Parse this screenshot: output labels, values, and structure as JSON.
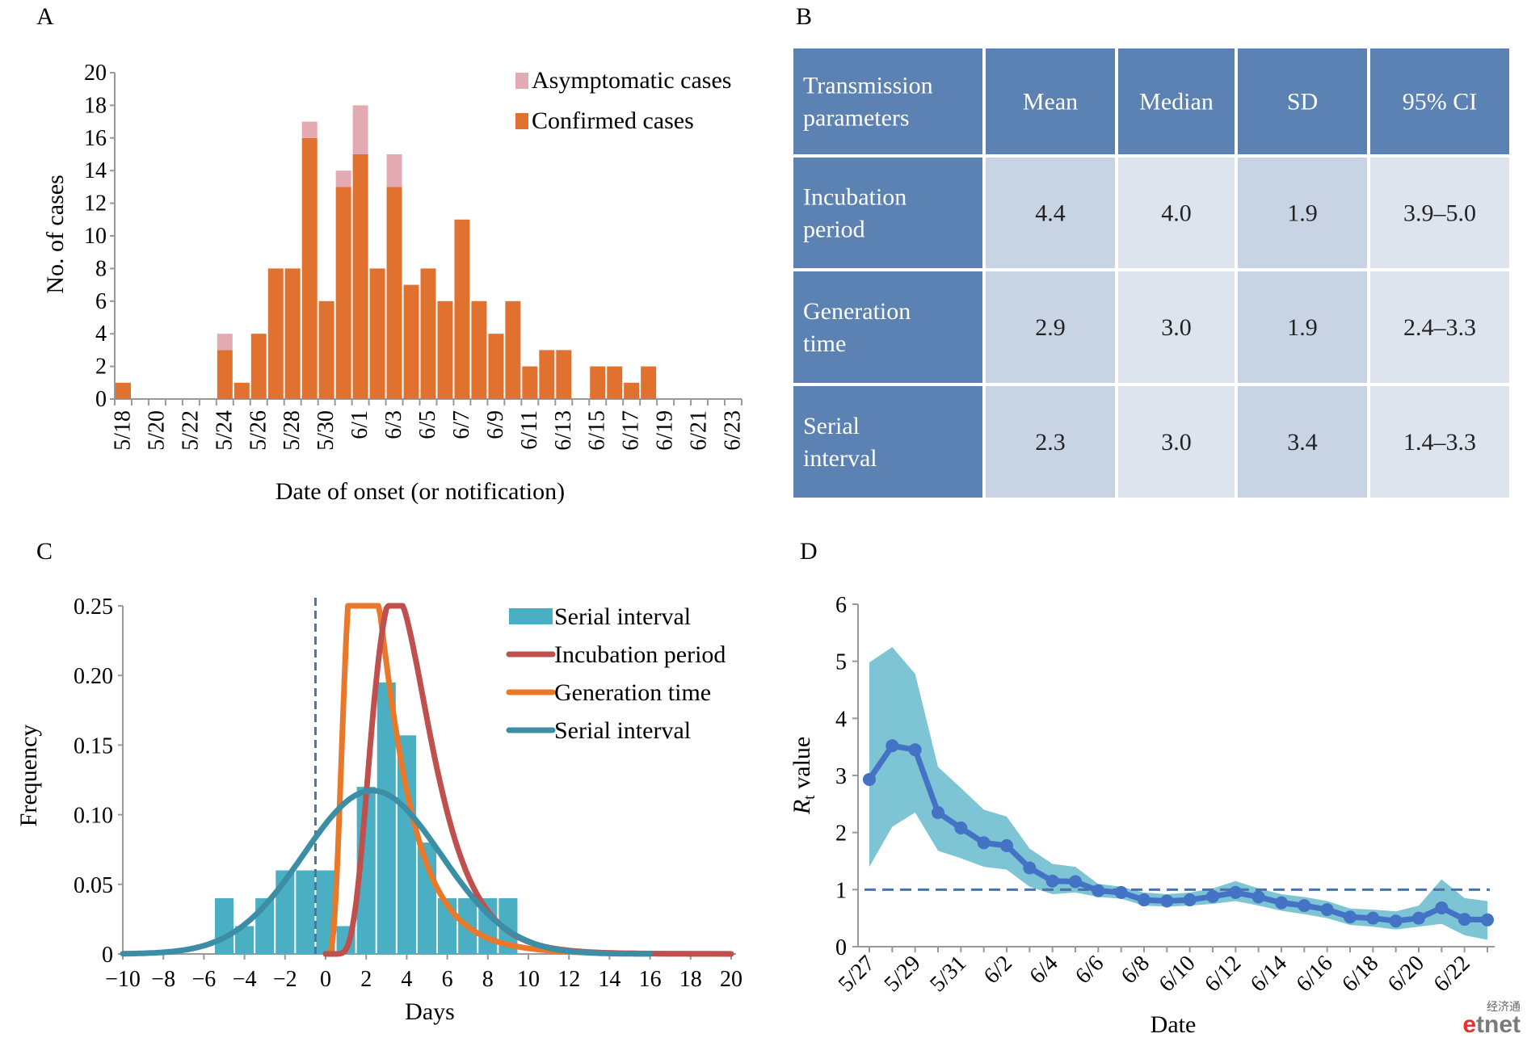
{
  "panel_letters": {
    "a": "A",
    "b": "B",
    "c": "C",
    "d": "D"
  },
  "colors": {
    "confirmed": "#e0712f",
    "asymptomatic": "#e3aab1",
    "histogram": "#4bafc3",
    "incubation_curve": "#c0504d",
    "generation_curve": "#e8782a",
    "serial_curve": "#3b8ea5",
    "rt_line": "#4472c4",
    "rt_band": "#4bafc3",
    "table_header": "#5b82b3",
    "table_cell_a": "#c8d3e3",
    "table_cell_b": "#dde4ee"
  },
  "chart_data": [
    {
      "panel": "A",
      "type": "bar",
      "stacked": true,
      "xlabel": "Date of onset (or notification)",
      "ylabel": "No. of cases",
      "ylim": [
        0,
        20
      ],
      "yticks": [
        0,
        2,
        4,
        6,
        8,
        10,
        12,
        14,
        16,
        18,
        20
      ],
      "tick_labels": [
        "5/18",
        "5/20",
        "5/22",
        "5/24",
        "5/26",
        "5/28",
        "5/30",
        "6/1",
        "6/3",
        "6/5",
        "6/7",
        "6/9",
        "6/11",
        "6/13",
        "6/15",
        "6/17",
        "6/19",
        "6/21",
        "6/23"
      ],
      "categories": [
        "5/18",
        "5/19",
        "5/20",
        "5/21",
        "5/22",
        "5/23",
        "5/24",
        "5/25",
        "5/26",
        "5/27",
        "5/28",
        "5/29",
        "5/30",
        "5/31",
        "6/1",
        "6/2",
        "6/3",
        "6/4",
        "6/5",
        "6/6",
        "6/7",
        "6/8",
        "6/9",
        "6/10",
        "6/11",
        "6/12",
        "6/13",
        "6/14",
        "6/15",
        "6/16",
        "6/17",
        "6/18",
        "6/19",
        "6/20",
        "6/21",
        "6/22",
        "6/23"
      ],
      "series": [
        {
          "name": "Confirmed cases",
          "values": [
            1,
            0,
            0,
            0,
            0,
            0,
            3,
            1,
            4,
            8,
            8,
            16,
            6,
            13,
            15,
            8,
            13,
            7,
            8,
            6,
            11,
            6,
            4,
            6,
            2,
            3,
            3,
            0,
            2,
            2,
            1,
            2,
            0,
            0,
            0,
            0,
            0
          ]
        },
        {
          "name": "Asymptomatic cases",
          "values": [
            0,
            0,
            0,
            0,
            0,
            0,
            1,
            0,
            0,
            0,
            0,
            1,
            0,
            1,
            3,
            0,
            2,
            0,
            0,
            0,
            0,
            0,
            0,
            0,
            0,
            0,
            0,
            0,
            0,
            0,
            0,
            0,
            0,
            0,
            0,
            0,
            0
          ]
        }
      ],
      "legend": "top-right"
    },
    {
      "panel": "B",
      "type": "table",
      "columns": [
        "Transmission parameters",
        "Mean",
        "Median",
        "SD",
        "95% CI"
      ],
      "rows": [
        [
          "Incubation period",
          "4.4",
          "4.0",
          "1.9",
          "3.9–5.0"
        ],
        [
          "Generation time",
          "2.9",
          "3.0",
          "1.9",
          "2.4–3.3"
        ],
        [
          "Serial interval",
          "2.3",
          "3.0",
          "3.4",
          "1.4–3.3"
        ]
      ]
    },
    {
      "panel": "C",
      "type": "bar",
      "xlabel": "Days",
      "ylabel": "Frequency",
      "xlim": [
        -10,
        20
      ],
      "ylim": [
        0,
        0.25
      ],
      "xticks": [
        "−10",
        "−8",
        "−6",
        "−4",
        "−2",
        "0",
        "2",
        "4",
        "6",
        "8",
        "10",
        "12",
        "14",
        "16",
        "18",
        "20"
      ],
      "yticks": [
        "0",
        "0.05",
        "0.10",
        "0.15",
        "0.20",
        "0.25"
      ],
      "vline_x": -0.5,
      "histogram": {
        "name": "Serial interval",
        "bins": [
          -5,
          -4,
          -3,
          -2,
          -1,
          0,
          1,
          2,
          3,
          4,
          5,
          6,
          7,
          8,
          9
        ],
        "values": [
          0.04,
          0.02,
          0.04,
          0.06,
          0.06,
          0.06,
          0.02,
          0.12,
          0.195,
          0.157,
          0.08,
          0.04,
          0.04,
          0.04,
          0.04
        ]
      },
      "curves": [
        {
          "name": "Incubation period",
          "distribution": "lognormal",
          "mean": 4.4,
          "sd": 1.9
        },
        {
          "name": "Generation time",
          "distribution": "lognormal",
          "mean": 2.9,
          "sd": 1.9
        },
        {
          "name": "Serial interval",
          "distribution": "normal",
          "mean": 2.3,
          "sd": 3.4
        }
      ],
      "legend": "top-right"
    },
    {
      "panel": "D",
      "type": "line",
      "xlabel": "Date",
      "ylabel": "Rt value",
      "ylim": [
        0,
        6
      ],
      "yticks": [
        0,
        1,
        2,
        3,
        4,
        5,
        6
      ],
      "tick_labels": [
        "5/27",
        "5/29",
        "5/31",
        "6/2",
        "6/4",
        "6/6",
        "6/8",
        "6/10",
        "6/12",
        "6/14",
        "6/16",
        "6/18",
        "6/20",
        "6/22"
      ],
      "x": [
        "5/27",
        "5/28",
        "5/29",
        "5/30",
        "5/31",
        "6/1",
        "6/2",
        "6/3",
        "6/4",
        "6/5",
        "6/6",
        "6/7",
        "6/8",
        "6/9",
        "6/10",
        "6/11",
        "6/12",
        "6/13",
        "6/14",
        "6/15",
        "6/16",
        "6/17",
        "6/18",
        "6/19",
        "6/20",
        "6/21",
        "6/22",
        "6/23"
      ],
      "series": [
        {
          "values": [
            2.93,
            3.52,
            3.45,
            2.35,
            2.08,
            1.82,
            1.77,
            1.38,
            1.15,
            1.14,
            0.98,
            0.95,
            0.82,
            0.8,
            0.82,
            0.88,
            0.95,
            0.87,
            0.77,
            0.72,
            0.65,
            0.52,
            0.5,
            0.45,
            0.5,
            0.68,
            0.48,
            0.47
          ]
        }
      ],
      "ci_lower": [
        1.4,
        2.1,
        2.35,
        1.68,
        1.55,
        1.4,
        1.35,
        1.05,
        0.92,
        0.95,
        0.87,
        0.84,
        0.72,
        0.7,
        0.72,
        0.75,
        0.8,
        0.72,
        0.63,
        0.57,
        0.5,
        0.38,
        0.35,
        0.3,
        0.35,
        0.4,
        0.2,
        0.12
      ],
      "ci_upper": [
        4.98,
        5.25,
        4.78,
        3.15,
        2.78,
        2.4,
        2.28,
        1.72,
        1.45,
        1.4,
        1.1,
        1.05,
        0.95,
        0.92,
        0.95,
        1.02,
        1.15,
        1.02,
        0.92,
        0.87,
        0.8,
        0.67,
        0.65,
        0.62,
        0.72,
        1.18,
        0.85,
        0.8
      ],
      "reference_line": 1
    }
  ],
  "watermark": {
    "cn": "经济通",
    "brand": "etnet"
  }
}
